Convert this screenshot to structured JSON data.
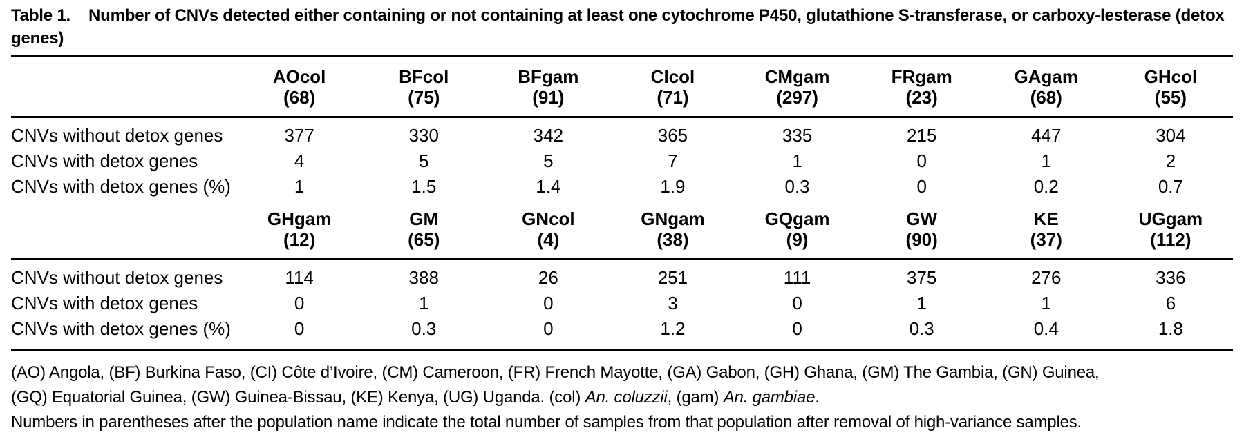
{
  "title": {
    "label": "Table 1.",
    "caption": "Number of CNVs detected either containing or not containing at least one cytochrome P450, glutathione S-transferase, or carboxy-lesterase (detox genes)"
  },
  "table": {
    "blocks": [
      {
        "columns": [
          {
            "name": "AOcol",
            "samples": "(68)"
          },
          {
            "name": "BFcol",
            "samples": "(75)"
          },
          {
            "name": "BFgam",
            "samples": "(91)"
          },
          {
            "name": "CIcol",
            "samples": "(71)"
          },
          {
            "name": "CMgam",
            "samples": "(297)"
          },
          {
            "name": "FRgam",
            "samples": "(23)"
          },
          {
            "name": "GAgam",
            "samples": "(68)"
          },
          {
            "name": "GHcol",
            "samples": "(55)"
          }
        ],
        "rows": [
          {
            "label": "CNVs without detox genes",
            "values": [
              "377",
              "330",
              "342",
              "365",
              "335",
              "215",
              "447",
              "304"
            ]
          },
          {
            "label": "CNVs with detox genes",
            "values": [
              "4",
              "5",
              "5",
              "7",
              "1",
              "0",
              "1",
              "2"
            ]
          },
          {
            "label": "CNVs with detox genes (%)",
            "values": [
              "1",
              "1.5",
              "1.4",
              "1.9",
              "0.3",
              "0",
              "0.2",
              "0.7"
            ]
          }
        ]
      },
      {
        "columns": [
          {
            "name": "GHgam",
            "samples": "(12)"
          },
          {
            "name": "GM",
            "samples": "(65)"
          },
          {
            "name": "GNcol",
            "samples": "(4)"
          },
          {
            "name": "GNgam",
            "samples": "(38)"
          },
          {
            "name": "GQgam",
            "samples": "(9)"
          },
          {
            "name": "GW",
            "samples": "(90)"
          },
          {
            "name": "KE",
            "samples": "(37)"
          },
          {
            "name": "UGgam",
            "samples": "(112)"
          }
        ],
        "rows": [
          {
            "label": "CNVs without detox genes",
            "values": [
              "114",
              "388",
              "26",
              "251",
              "111",
              "375",
              "276",
              "336"
            ]
          },
          {
            "label": "CNVs with detox genes",
            "values": [
              "0",
              "1",
              "0",
              "3",
              "0",
              "1",
              "1",
              "6"
            ]
          },
          {
            "label": "CNVs with detox genes (%)",
            "values": [
              "0",
              "0.3",
              "0",
              "1.2",
              "0",
              "0.3",
              "0.4",
              "1.8"
            ]
          }
        ]
      }
    ]
  },
  "footnotes": {
    "line1": "(AO) Angola, (BF) Burkina Faso, (CI) Côte d’Ivoire, (CM) Cameroon, (FR) French Mayotte, (GA) Gabon, (GH) Ghana, (GM) The Gambia, (GN) Guinea,",
    "line2_parts": {
      "p1": "(GQ) Equatorial Guinea, (GW) Guinea-Bissau, (KE) Kenya, (UG) Uganda. (col) ",
      "italic1": "An. coluzzii",
      "p2": ", (gam) ",
      "italic2": "An. gambiae",
      "p3": "."
    },
    "line3": "Numbers in parentheses after the population name indicate the total number of samples from that population after removal of high-variance samples."
  },
  "colors": {
    "text": "#000000",
    "background": "#ffffff",
    "rule": "#000000"
  }
}
